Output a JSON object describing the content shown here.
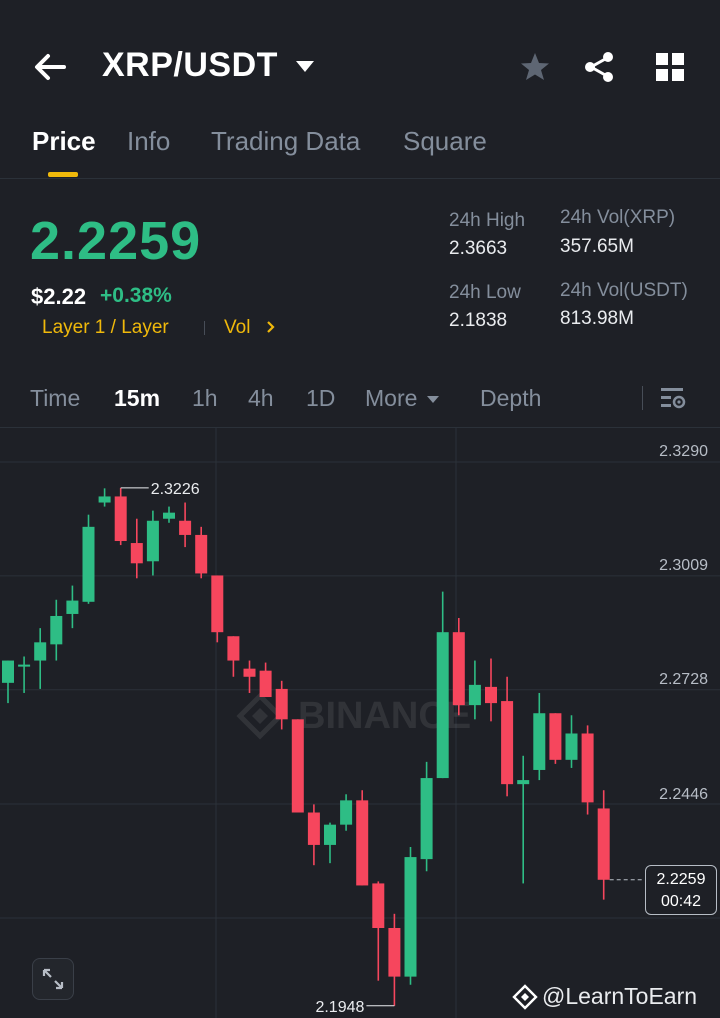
{
  "header": {
    "pair": "XRP/USDT"
  },
  "tabs": [
    {
      "label": "Price"
    },
    {
      "label": "Info"
    },
    {
      "label": "Trading Data"
    },
    {
      "label": "Square"
    }
  ],
  "ticker": {
    "last_price": "2.2259",
    "usd_price": "$2.22",
    "change_pct": "+0.38%",
    "tag": "Layer 1 / Layer",
    "vol_link": "Vol",
    "stats": {
      "high_label": "24h High",
      "high_value": "2.3663",
      "low_label": "24h Low",
      "low_value": "2.1838",
      "vol_base_label": "24h Vol(XRP)",
      "vol_base_value": "357.65M",
      "vol_quote_label": "24h Vol(USDT)",
      "vol_quote_value": "813.98M"
    }
  },
  "timeframes": [
    {
      "label": "Time"
    },
    {
      "label": "15m"
    },
    {
      "label": "1h"
    },
    {
      "label": "4h"
    },
    {
      "label": "1D"
    },
    {
      "label": "More"
    },
    {
      "label": "Depth"
    }
  ],
  "active_timeframe": "15m",
  "colors": {
    "up": "#2ebd85",
    "down": "#f6465d",
    "accent": "#f0b90b",
    "bg": "#1e2026"
  },
  "icons": [
    "back-arrow-icon",
    "dropdown-caret-icon",
    "star-icon",
    "share-icon",
    "grid-icon",
    "chart-settings-icon",
    "expand-icon",
    "binance-logo-icon"
  ],
  "chart_data": {
    "type": "candlestick",
    "y_axis_ticks": [
      "2.3290",
      "2.3009",
      "2.2728",
      "2.2446"
    ],
    "ylim": [
      2.19,
      2.335
    ],
    "current_price": "2.2259",
    "countdown": "00:42",
    "max_label": "2.3226",
    "min_label": "2.1948",
    "watermark": "BINANCE",
    "candles": [
      {
        "o": 2.2745,
        "h": 2.28,
        "l": 2.2695,
        "c": 2.28
      },
      {
        "o": 2.2785,
        "h": 2.281,
        "l": 2.272,
        "c": 2.279
      },
      {
        "o": 2.28,
        "h": 2.288,
        "l": 2.273,
        "c": 2.2845
      },
      {
        "o": 2.284,
        "h": 2.295,
        "l": 2.28,
        "c": 2.291
      },
      {
        "o": 2.2915,
        "h": 2.2985,
        "l": 2.288,
        "c": 2.2948
      },
      {
        "o": 2.2945,
        "h": 2.316,
        "l": 2.294,
        "c": 2.313
      },
      {
        "o": 2.319,
        "h": 2.3225,
        "l": 2.318,
        "c": 2.3205
      },
      {
        "o": 2.3205,
        "h": 2.3226,
        "l": 2.3085,
        "c": 2.3095
      },
      {
        "o": 2.309,
        "h": 2.315,
        "l": 2.3003,
        "c": 2.304
      },
      {
        "o": 2.3045,
        "h": 2.317,
        "l": 2.301,
        "c": 2.3145
      },
      {
        "o": 2.315,
        "h": 2.318,
        "l": 2.314,
        "c": 2.3165
      },
      {
        "o": 2.3145,
        "h": 2.319,
        "l": 2.308,
        "c": 2.311
      },
      {
        "o": 2.311,
        "h": 2.313,
        "l": 2.3003,
        "c": 2.3015
      },
      {
        "o": 2.301,
        "h": 2.301,
        "l": 2.2845,
        "c": 2.287
      },
      {
        "o": 2.286,
        "h": 2.286,
        "l": 2.276,
        "c": 2.28
      },
      {
        "o": 2.278,
        "h": 2.28,
        "l": 2.272,
        "c": 2.276
      },
      {
        "o": 2.2775,
        "h": 2.2795,
        "l": 2.271,
        "c": 2.271
      },
      {
        "o": 2.273,
        "h": 2.275,
        "l": 2.263,
        "c": 2.2655
      },
      {
        "o": 2.2655,
        "h": 2.2655,
        "l": 2.243,
        "c": 2.2425
      },
      {
        "o": 2.2425,
        "h": 2.2445,
        "l": 2.2295,
        "c": 2.2345
      },
      {
        "o": 2.2345,
        "h": 2.24,
        "l": 2.23,
        "c": 2.2395
      },
      {
        "o": 2.2395,
        "h": 2.247,
        "l": 2.238,
        "c": 2.2455
      },
      {
        "o": 2.2455,
        "h": 2.248,
        "l": 2.2245,
        "c": 2.2245
      },
      {
        "o": 2.225,
        "h": 2.2255,
        "l": 2.201,
        "c": 2.214
      },
      {
        "o": 2.214,
        "h": 2.2175,
        "l": 2.1948,
        "c": 2.202
      },
      {
        "o": 2.202,
        "h": 2.234,
        "l": 2.2,
        "c": 2.2315
      },
      {
        "o": 2.231,
        "h": 2.255,
        "l": 2.228,
        "c": 2.251
      },
      {
        "o": 2.251,
        "h": 2.297,
        "l": 2.251,
        "c": 2.287
      },
      {
        "o": 2.287,
        "h": 2.2905,
        "l": 2.2665,
        "c": 2.269
      },
      {
        "o": 2.269,
        "h": 2.28,
        "l": 2.2655,
        "c": 2.274
      },
      {
        "o": 2.2735,
        "h": 2.2805,
        "l": 2.265,
        "c": 2.2695
      },
      {
        "o": 2.27,
        "h": 2.276,
        "l": 2.2465,
        "c": 2.2495
      },
      {
        "o": 2.2495,
        "h": 2.2565,
        "l": 2.225,
        "c": 2.2505
      },
      {
        "o": 2.253,
        "h": 2.272,
        "l": 2.2505,
        "c": 2.267
      },
      {
        "o": 2.267,
        "h": 2.267,
        "l": 2.2545,
        "c": 2.2555
      },
      {
        "o": 2.2555,
        "h": 2.2665,
        "l": 2.2535,
        "c": 2.262
      },
      {
        "o": 2.262,
        "h": 2.264,
        "l": 2.242,
        "c": 2.245
      },
      {
        "o": 2.2435,
        "h": 2.248,
        "l": 2.221,
        "c": 2.2259
      }
    ]
  },
  "watermark_handle": "@LearnToEarn"
}
